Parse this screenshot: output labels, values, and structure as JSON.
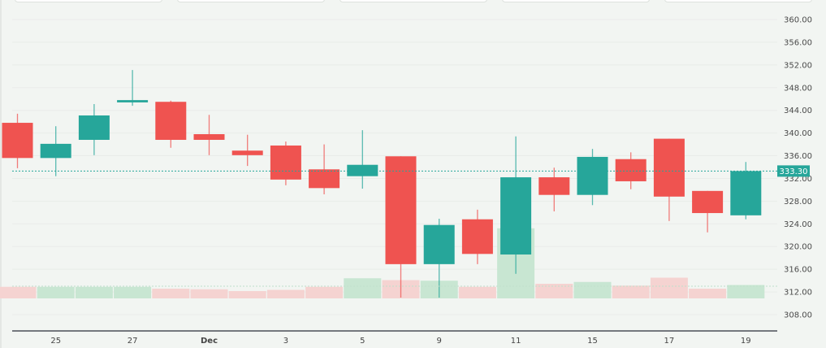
{
  "chart_data": {
    "type": "candlestick",
    "title": "",
    "xlabel": "",
    "ylabel": "",
    "ylim": [
      306,
      362
    ],
    "grid": true,
    "y_ticks": [
      "360.00",
      "356.00",
      "352.00",
      "348.00",
      "344.00",
      "340.00",
      "336.00",
      "332.00",
      "328.00",
      "324.00",
      "320.00",
      "316.00",
      "312.00",
      "308.00"
    ],
    "x_ticks": [
      {
        "label": "25",
        "index": 1,
        "bold": false
      },
      {
        "label": "27",
        "index": 3,
        "bold": false
      },
      {
        "label": "Dec",
        "index": 5,
        "bold": true
      },
      {
        "label": "3",
        "index": 7,
        "bold": false
      },
      {
        "label": "5",
        "index": 9,
        "bold": false
      },
      {
        "label": "9",
        "index": 11,
        "bold": false
      },
      {
        "label": "11",
        "index": 13,
        "bold": false
      },
      {
        "label": "15",
        "index": 15,
        "bold": false
      },
      {
        "label": "17",
        "index": 17,
        "bold": false
      },
      {
        "label": "19",
        "index": 19,
        "bold": false
      }
    ],
    "last_price": "333.30",
    "last_price_value": 333.3,
    "colors": {
      "up": "#26a69a",
      "down": "#ef5350",
      "volume_up": "#c8e6d2",
      "volume_down": "#f5d3d1",
      "background": "#f2f5f2",
      "grid": "#e9ece9",
      "axis_line": "#2a2e39",
      "label_text": "#4a4a4a"
    },
    "candles": [
      {
        "open": 341.8,
        "high": 343.4,
        "low": 333.8,
        "close": 335.6,
        "volume": 1.9
      },
      {
        "open": 335.6,
        "high": 341.2,
        "low": 332.4,
        "close": 338.1,
        "volume": 1.9
      },
      {
        "open": 338.8,
        "high": 345.1,
        "low": 336.1,
        "close": 343.1,
        "volume": 1.9
      },
      {
        "open": 345.4,
        "high": 351.1,
        "low": 344.8,
        "close": 345.8,
        "volume": 1.9
      },
      {
        "open": 345.5,
        "high": 345.7,
        "low": 337.4,
        "close": 338.8,
        "volume": 1.6
      },
      {
        "open": 339.8,
        "high": 343.2,
        "low": 336.1,
        "close": 338.8,
        "volume": 1.5
      },
      {
        "open": 336.9,
        "high": 339.7,
        "low": 334.2,
        "close": 336.1,
        "volume": 1.2
      },
      {
        "open": 337.8,
        "high": 338.5,
        "low": 330.8,
        "close": 331.8,
        "volume": 1.4
      },
      {
        "open": 333.6,
        "high": 338.0,
        "low": 329.2,
        "close": 330.3,
        "volume": 1.9
      },
      {
        "open": 332.4,
        "high": 340.5,
        "low": 330.2,
        "close": 334.4,
        "volume": 3.3
      },
      {
        "open": 335.9,
        "high": 335.9,
        "low": 311.0,
        "close": 316.9,
        "volume": 3.0
      },
      {
        "open": 316.9,
        "high": 324.9,
        "low": 311.0,
        "close": 323.8,
        "volume": 2.9
      },
      {
        "open": 324.8,
        "high": 326.5,
        "low": 316.9,
        "close": 318.7,
        "volume": 1.9
      },
      {
        "open": 318.6,
        "high": 339.4,
        "low": 315.2,
        "close": 332.2,
        "volume": 11.5
      },
      {
        "open": 332.2,
        "high": 333.9,
        "low": 326.2,
        "close": 329.1,
        "volume": 2.4
      },
      {
        "open": 329.1,
        "high": 337.2,
        "low": 327.3,
        "close": 335.8,
        "volume": 2.7
      },
      {
        "open": 335.4,
        "high": 336.6,
        "low": 330.1,
        "close": 331.5,
        "volume": 2.1
      },
      {
        "open": 339.0,
        "high": 339.0,
        "low": 324.5,
        "close": 328.8,
        "volume": 3.4
      },
      {
        "open": 329.8,
        "high": 329.8,
        "low": 322.5,
        "close": 325.9,
        "volume": 1.6
      },
      {
        "open": 325.5,
        "high": 334.9,
        "low": 324.8,
        "close": 333.3,
        "volume": 2.2
      }
    ]
  }
}
